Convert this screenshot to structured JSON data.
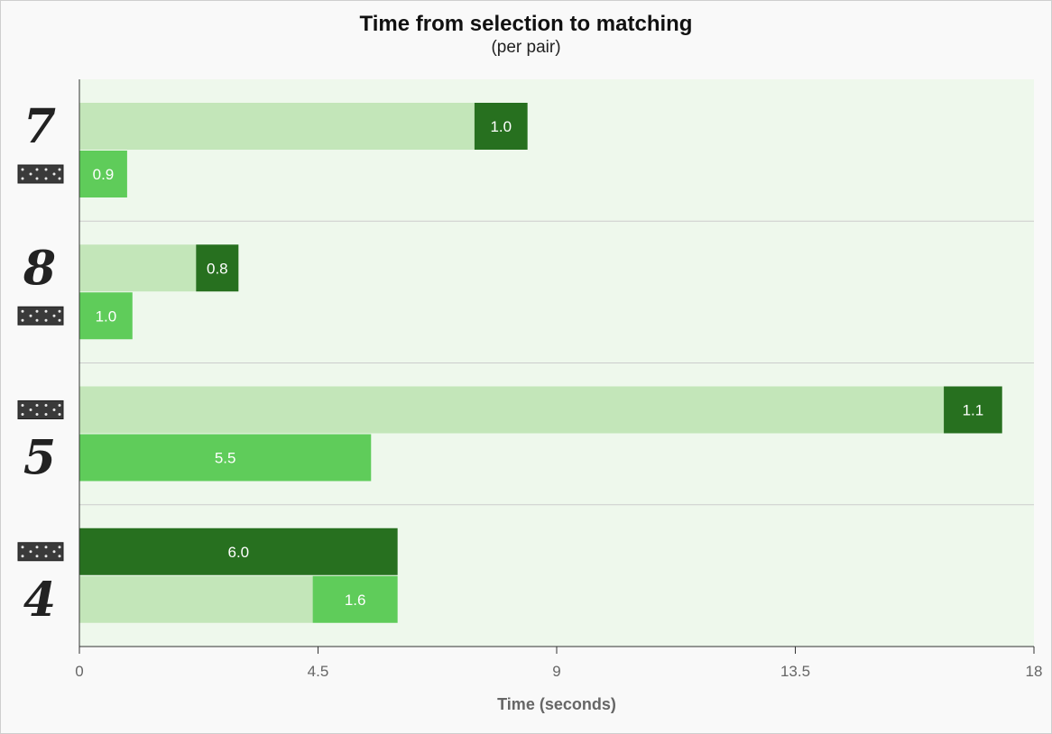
{
  "chart_data": {
    "type": "bar",
    "orientation": "horizontal",
    "stacked": true,
    "title": "Time from selection to matching",
    "subtitle": "(per pair)",
    "xlabel": "Time (seconds)",
    "ylabel": "",
    "xlim": [
      0,
      18
    ],
    "xticks": [
      "0",
      "4.5",
      "9",
      "13.5",
      "18"
    ],
    "grid": false,
    "colors": {
      "wait": "#c3e6b9",
      "dark": "#27701f",
      "medium": "#5fcc5a",
      "plot_bg": "#eef8ec",
      "separator": "#cccccc"
    },
    "groups": [
      {
        "name": "7",
        "rows": [
          {
            "card": "7",
            "card_kind": "digit",
            "wait": 7.45,
            "value": 1.0,
            "label": "1.0",
            "color": "dark"
          },
          {
            "card": "domino",
            "card_kind": "domino-card-icon",
            "wait": 0,
            "value": 0.9,
            "label": "0.9",
            "color": "medium"
          }
        ]
      },
      {
        "name": "8",
        "rows": [
          {
            "card": "8",
            "card_kind": "digit",
            "wait": 2.2,
            "value": 0.8,
            "label": "0.8",
            "color": "dark"
          },
          {
            "card": "domino",
            "card_kind": "domino-card-icon",
            "wait": 0,
            "value": 1.0,
            "label": "1.0",
            "color": "medium"
          }
        ]
      },
      {
        "name": "5",
        "rows": [
          {
            "card": "domino",
            "card_kind": "domino-card-icon",
            "wait": 16.3,
            "value": 1.1,
            "label": "1.1",
            "color": "dark"
          },
          {
            "card": "5",
            "card_kind": "digit",
            "wait": 0,
            "value": 5.5,
            "label": "5.5",
            "color": "medium"
          }
        ]
      },
      {
        "name": "4",
        "rows": [
          {
            "card": "domino",
            "card_kind": "domino-card-icon",
            "wait": 0,
            "value": 6.0,
            "label": "6.0",
            "color": "dark"
          },
          {
            "card": "4",
            "card_kind": "digit",
            "wait": 4.4,
            "value": 1.6,
            "label": "1.6",
            "color": "medium"
          }
        ]
      }
    ]
  }
}
